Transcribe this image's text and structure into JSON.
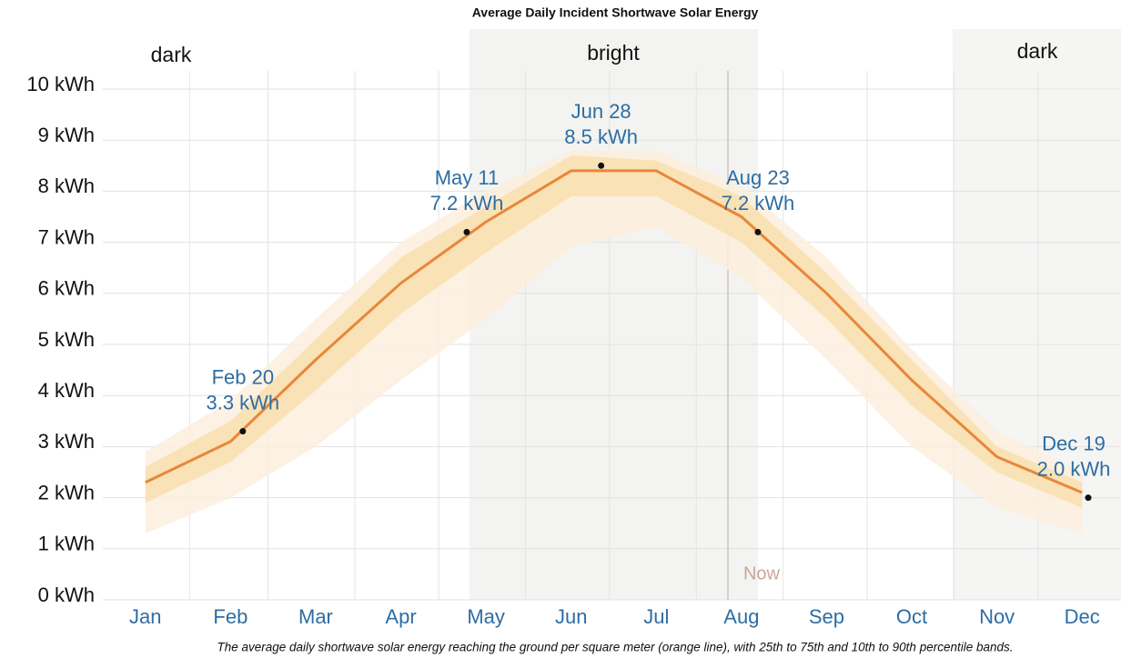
{
  "chart_data": {
    "type": "line",
    "title": "Average Daily Incident Shortwave Solar Energy",
    "caption": "The average daily shortwave solar energy reaching the ground per square meter (orange line), with 25th to 75th and 10th to 90th percentile bands.",
    "categories": [
      "Jan",
      "Feb",
      "Mar",
      "Apr",
      "May",
      "Jun",
      "Jul",
      "Aug",
      "Sep",
      "Oct",
      "Nov",
      "Dec"
    ],
    "series": [
      {
        "color": "#e8873a",
        "values": [
          2.3,
          3.1,
          4.7,
          6.2,
          7.4,
          8.4,
          8.4,
          7.5,
          6.0,
          4.3,
          2.8,
          2.1
        ]
      }
    ],
    "bands": [
      {
        "color": "#fbeedd",
        "upper": [
          2.9,
          3.9,
          5.5,
          7.0,
          8.0,
          8.8,
          8.8,
          8.1,
          6.7,
          4.9,
          3.3,
          2.5
        ],
        "lower": [
          1.3,
          2.0,
          3.0,
          4.3,
          5.5,
          6.9,
          7.3,
          6.3,
          4.7,
          3.0,
          1.8,
          1.3
        ]
      },
      {
        "color": "#f8dfae",
        "upper": [
          2.6,
          3.5,
          5.1,
          6.7,
          7.7,
          8.7,
          8.6,
          7.9,
          6.4,
          4.7,
          3.0,
          2.3
        ],
        "lower": [
          1.9,
          2.7,
          4.1,
          5.6,
          6.8,
          7.9,
          7.9,
          7.0,
          5.5,
          3.8,
          2.5,
          1.8
        ]
      }
    ],
    "annotations": [
      {
        "date": "Feb 20",
        "value": 3.3,
        "value_label": "3.3 kWh"
      },
      {
        "date": "May 11",
        "value": 7.2,
        "value_label": "7.2 kWh"
      },
      {
        "date": "Jun 28",
        "value": 8.5,
        "value_label": "8.5 kWh"
      },
      {
        "date": "Aug 23",
        "value": 7.2,
        "value_label": "7.2 kWh"
      },
      {
        "date": "Dec 19",
        "value": 2.0,
        "value_label": "2.0 kWh"
      }
    ],
    "regions": [
      "dark",
      "bright",
      "dark"
    ],
    "now_label": "Now",
    "ylim": [
      0,
      10
    ],
    "yticks": [
      {
        "value": 0,
        "label": "0 kWh"
      },
      {
        "value": 1,
        "label": "1 kWh"
      },
      {
        "value": 2,
        "label": "2 kWh"
      },
      {
        "value": 3,
        "label": "3 kWh"
      },
      {
        "value": 4,
        "label": "4 kWh"
      },
      {
        "value": 5,
        "label": "5 kWh"
      },
      {
        "value": 6,
        "label": "6 kWh"
      },
      {
        "value": 7,
        "label": "7 kWh"
      },
      {
        "value": 8,
        "label": "8 kWh"
      },
      {
        "value": 9,
        "label": "9 kWh"
      },
      {
        "value": 10,
        "label": "10 kWh"
      }
    ],
    "grid": true
  }
}
